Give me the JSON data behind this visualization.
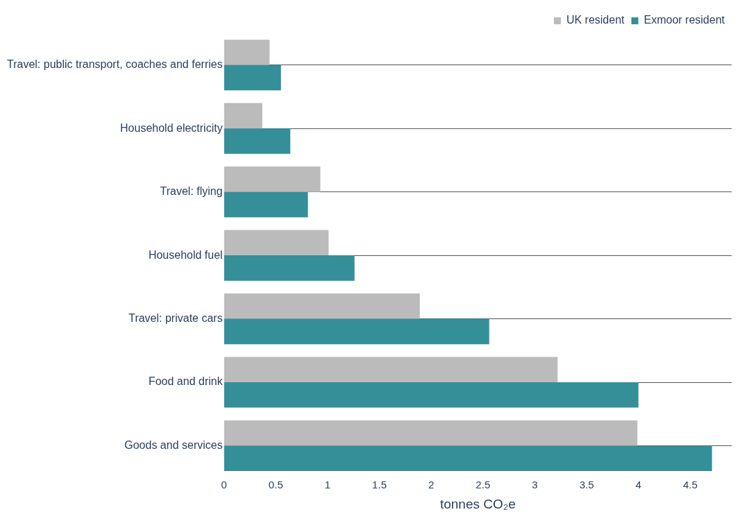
{
  "chart_data": {
    "type": "bar",
    "orientation": "horizontal",
    "xlabel": "tonnes CO₂e",
    "categories": [
      "Travel: public transport, coaches and ferries",
      "Household electricity",
      "Travel: flying",
      "Household fuel",
      "Travel: private cars",
      "Food and drink",
      "Goods and services"
    ],
    "series": [
      {
        "name": "UK resident",
        "color": "#bbbbbb",
        "values": [
          0.44,
          0.37,
          0.93,
          1.01,
          1.89,
          3.22,
          3.99
        ]
      },
      {
        "name": "Exmoor resident",
        "color": "#348f99",
        "values": [
          0.55,
          0.64,
          0.81,
          1.26,
          2.56,
          4.0,
          4.71
        ]
      }
    ],
    "xlim": [
      0,
      4.9
    ],
    "xticks": [
      0,
      0.5,
      1,
      1.5,
      2,
      2.5,
      3,
      3.5,
      4,
      4.5
    ],
    "grid": "y",
    "legend": "top right"
  }
}
